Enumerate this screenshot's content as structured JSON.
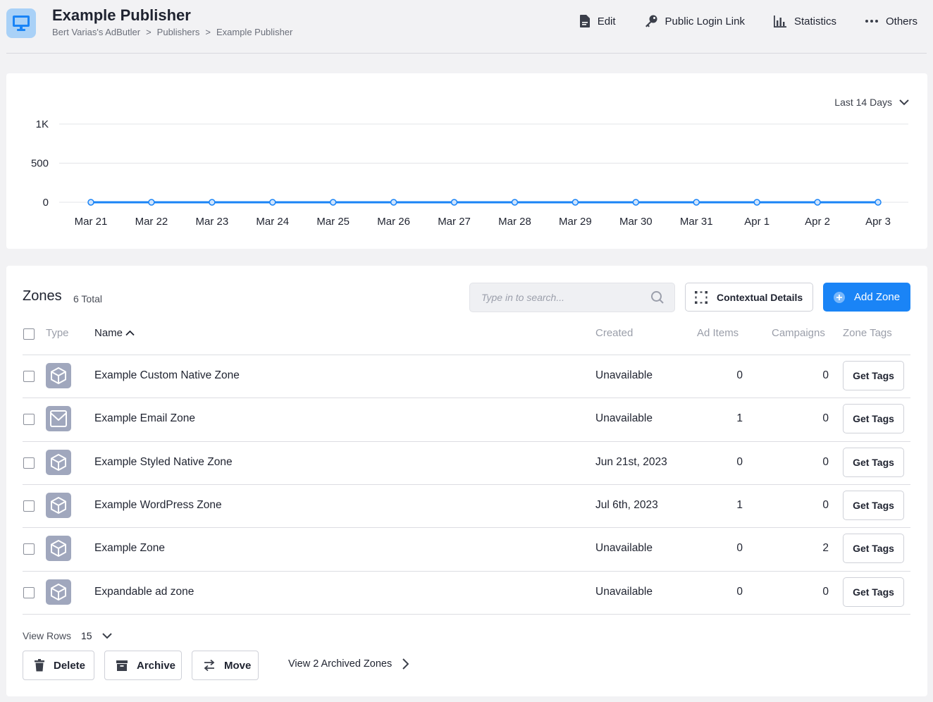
{
  "header": {
    "title": "Example Publisher",
    "breadcrumb": [
      "Bert Varias's AdButler",
      ">",
      "Publishers",
      ">",
      "Example Publisher"
    ],
    "actions": [
      {
        "label": "Edit",
        "icon": "document-icon"
      },
      {
        "label": "Public Login Link",
        "icon": "key-icon"
      },
      {
        "label": "Statistics",
        "icon": "bar-chart-icon"
      },
      {
        "label": "Others",
        "icon": "more-dots-icon"
      }
    ]
  },
  "range_selector": {
    "label": "Last 14 Days"
  },
  "chart_data": {
    "type": "line",
    "categories": [
      "Mar 21",
      "Mar 22",
      "Mar 23",
      "Mar 24",
      "Mar 25",
      "Mar 26",
      "Mar 27",
      "Mar 28",
      "Mar 29",
      "Mar 30",
      "Mar 31",
      "Apr 1",
      "Apr 2",
      "Apr 3"
    ],
    "series": [
      {
        "values": [
          0,
          0,
          0,
          0,
          0,
          0,
          0,
          0,
          0,
          0,
          0,
          0,
          0,
          0
        ]
      }
    ],
    "y_ticks": [
      {
        "value": 0,
        "label": "0"
      },
      {
        "value": 500,
        "label": "500"
      },
      {
        "value": 1000,
        "label": "1K"
      }
    ],
    "ylim": [
      0,
      1000
    ],
    "grid": true,
    "color": "#1a84f6"
  },
  "zones": {
    "title": "Zones",
    "total": "6 Total",
    "search_placeholder": "Type in to search...",
    "contextual_button": "Contextual Details",
    "add_button": "Add Zone",
    "columns": {
      "type": "Type",
      "name": "Name",
      "created": "Created",
      "ad_items": "Ad Items",
      "campaigns": "Campaigns",
      "zone_tags": "Zone Tags"
    },
    "rows": [
      {
        "type_icon": "cube-icon",
        "name": "Example Custom Native Zone",
        "created": "Unavailable",
        "ad_items": "0",
        "campaigns": "0",
        "action": "Get Tags"
      },
      {
        "type_icon": "envelope-icon",
        "name": "Example Email Zone",
        "created": "Unavailable",
        "ad_items": "1",
        "campaigns": "0",
        "action": "Get Tags"
      },
      {
        "type_icon": "cube-icon",
        "name": "Example Styled Native Zone",
        "created": "Jun 21st, 2023",
        "ad_items": "0",
        "campaigns": "0",
        "action": "Get Tags"
      },
      {
        "type_icon": "cube-icon",
        "name": "Example WordPress Zone",
        "created": "Jul 6th, 2023",
        "ad_items": "1",
        "campaigns": "0",
        "action": "Get Tags"
      },
      {
        "type_icon": "cube-icon",
        "name": "Example Zone",
        "created": "Unavailable",
        "ad_items": "0",
        "campaigns": "2",
        "action": "Get Tags"
      },
      {
        "type_icon": "cube-icon",
        "name": "Expandable ad zone",
        "created": "Unavailable",
        "ad_items": "0",
        "campaigns": "0",
        "action": "Get Tags"
      }
    ],
    "view_rows_label": "View Rows",
    "view_rows_value": "15",
    "delete_button": "Delete",
    "archive_button": "Archive",
    "move_button": "Move",
    "archived_link": "View 2 Archived Zones"
  },
  "colors": {
    "accent": "#1a84f6",
    "icon_bg": "#a0a7bd",
    "logo_bg": "#a9d1f7"
  }
}
